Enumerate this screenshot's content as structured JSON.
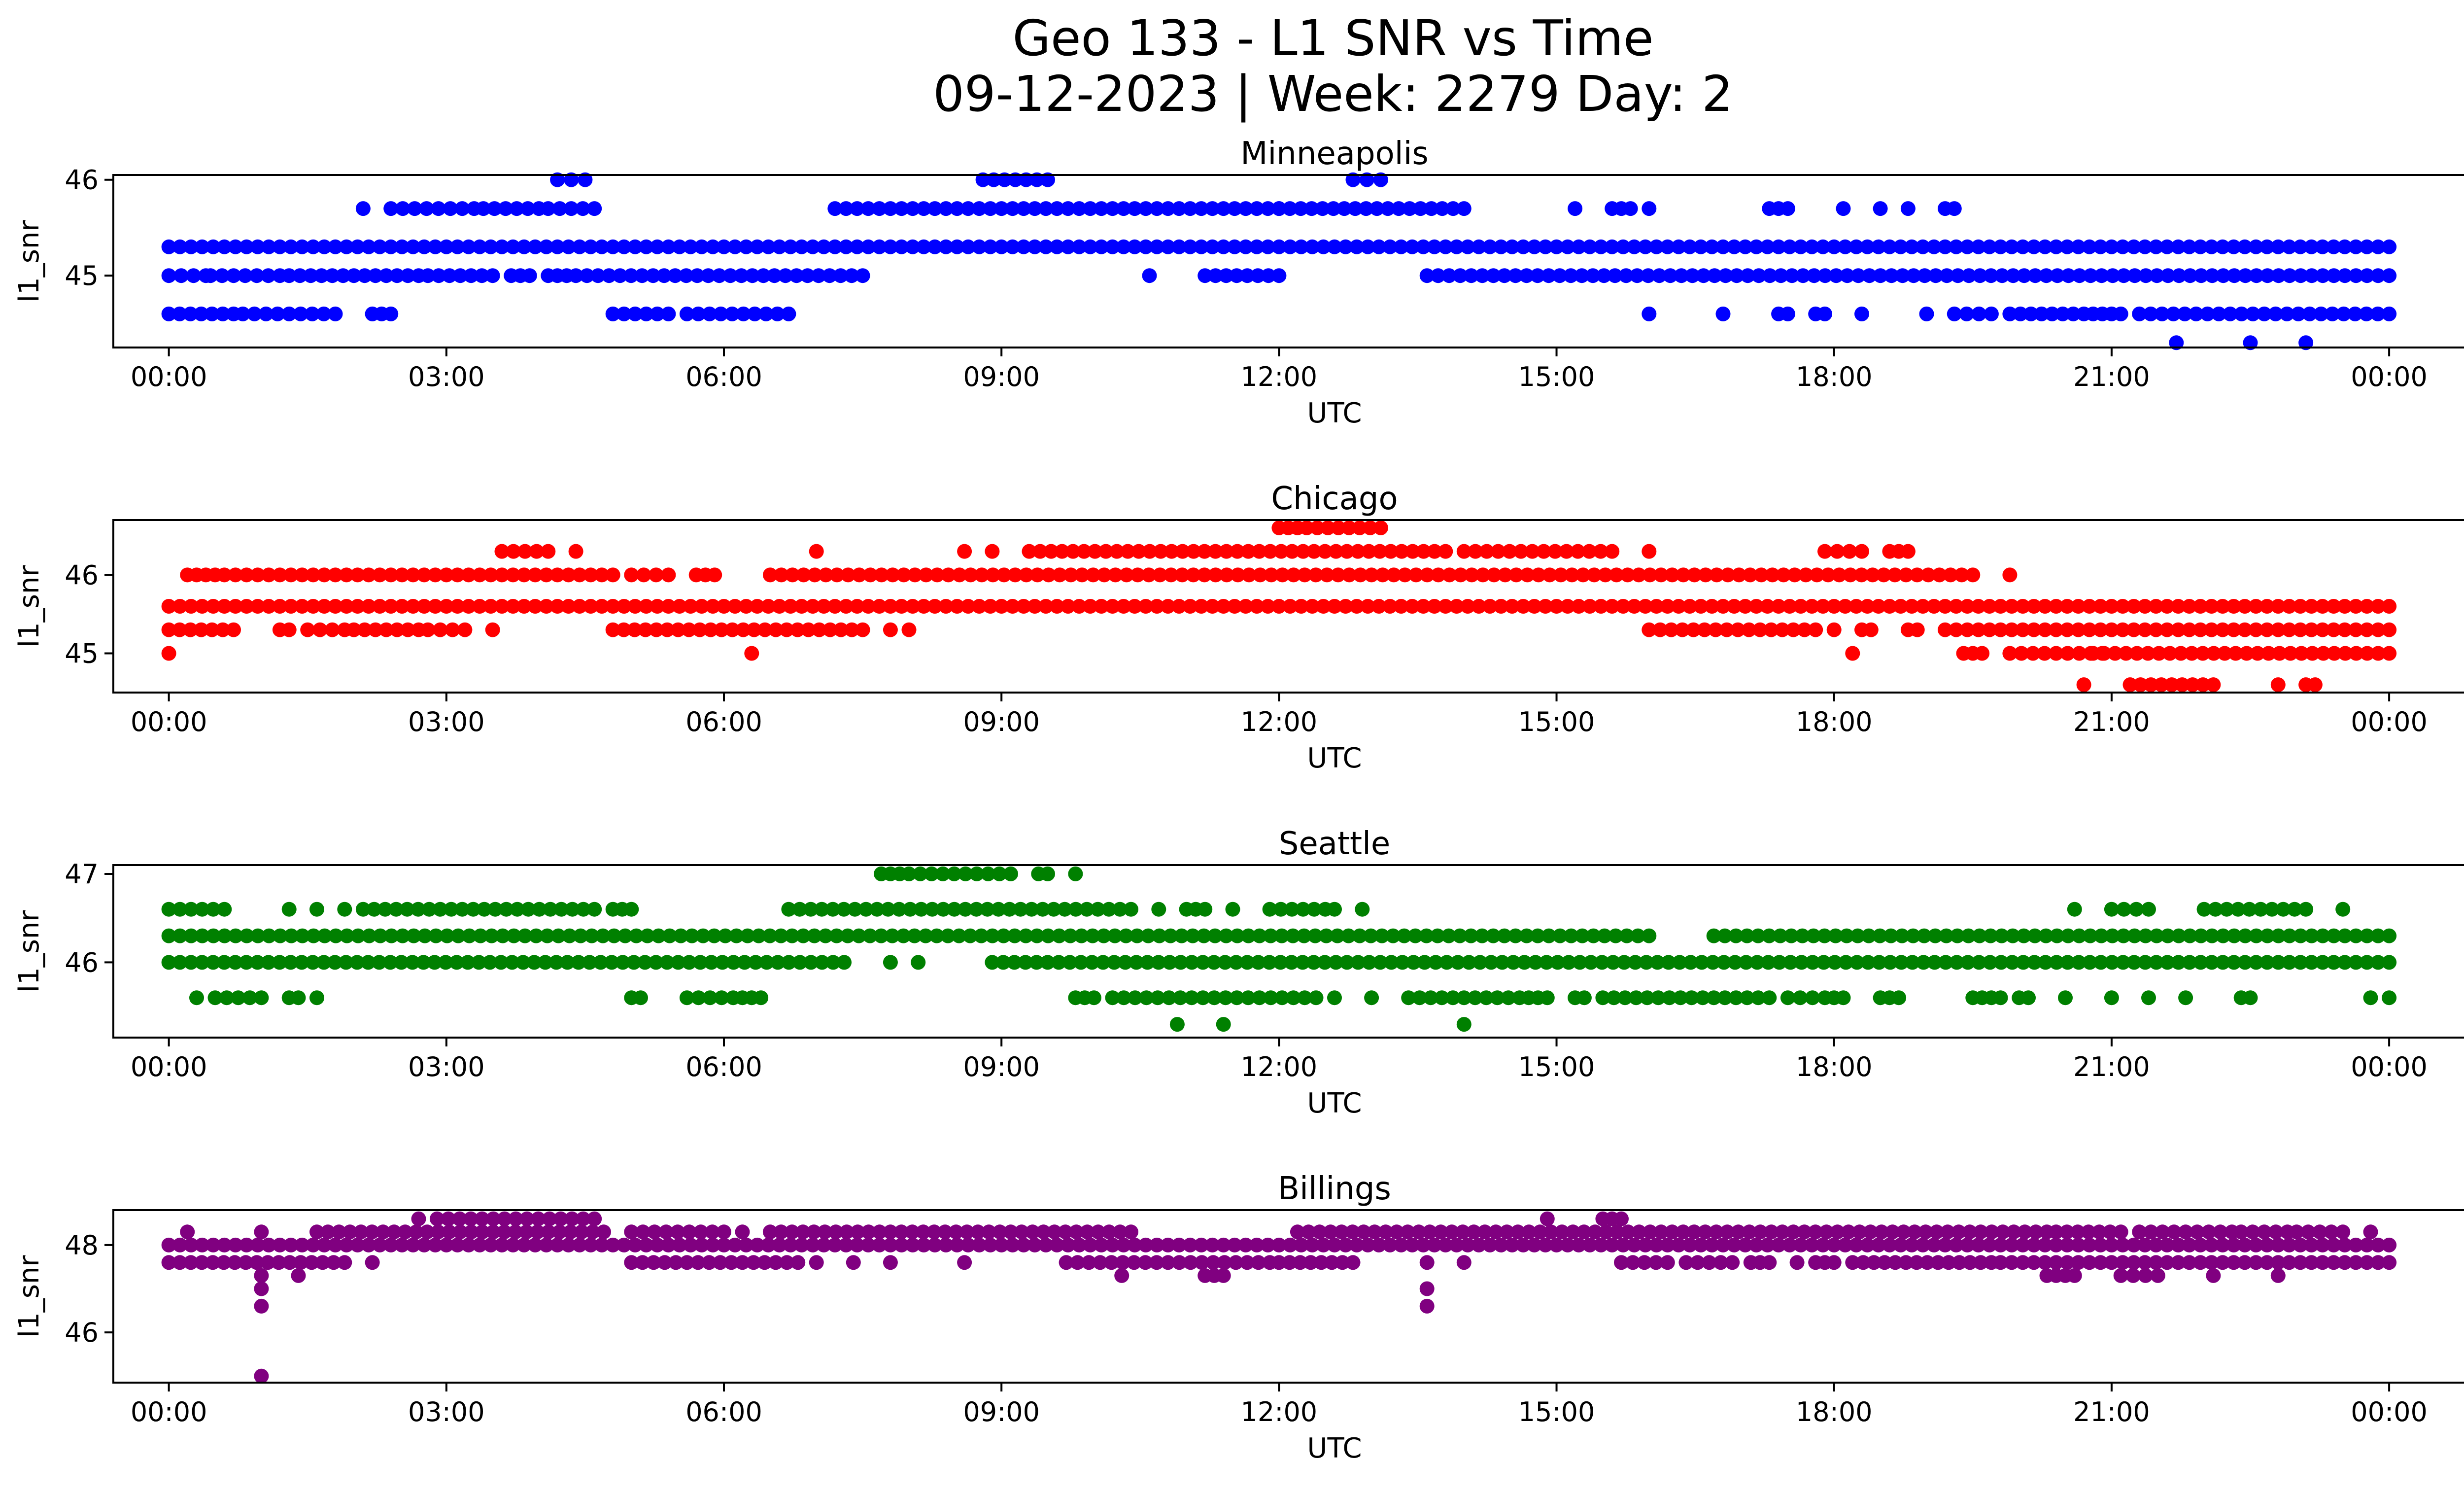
{
  "figure": {
    "title_line1": "Geo 133 - L1 SNR vs Time",
    "title_line2": "09-12-2023 | Week: 2279 Day: 2"
  },
  "chart_data": [
    {
      "type": "scatter",
      "title": "Minneapolis",
      "xlabel": "UTC",
      "ylabel": "l1_snr",
      "color": "#0000ff",
      "xlim_hours": [
        -0.6,
        25.8
      ],
      "ylim": [
        44.25,
        46.05
      ],
      "x_ticks": [
        "00:00",
        "03:00",
        "06:00",
        "09:00",
        "12:00",
        "15:00",
        "18:00",
        "21:00",
        "00:00"
      ],
      "y_ticks": [
        45,
        46
      ],
      "grid": false,
      "levels": [
        {
          "y": 45.3,
          "segments": [
            [
              0.0,
              24.0
            ]
          ]
        },
        {
          "y": 45.0,
          "segments": [
            [
              0.0,
              0.4
            ],
            [
              0.45,
              1.2
            ],
            [
              1.3,
              2.7
            ],
            [
              2.8,
              3.5
            ],
            [
              3.7,
              3.9
            ],
            [
              4.1,
              4.3
            ],
            [
              4.4,
              7.5
            ],
            [
              10.6,
              10.6
            ],
            [
              11.2,
              12.0
            ],
            [
              13.6,
              24.0
            ]
          ]
        },
        {
          "y": 44.6,
          "segments": [
            [
              0.0,
              0.7
            ],
            [
              0.8,
              1.8
            ],
            [
              2.2,
              2.4
            ],
            [
              4.8,
              5.4
            ],
            [
              5.6,
              6.7
            ],
            [
              16.0,
              16.0
            ],
            [
              16.8,
              16.8
            ],
            [
              17.4,
              17.5
            ],
            [
              17.8,
              17.9
            ],
            [
              18.3,
              18.3
            ],
            [
              19.0,
              19.0
            ],
            [
              19.3,
              19.7
            ],
            [
              19.9,
              20.7
            ],
            [
              20.8,
              21.1
            ],
            [
              21.3,
              24.0
            ]
          ]
        },
        {
          "y": 45.7,
          "segments": [
            [
              2.1,
              2.1
            ],
            [
              2.4,
              3.3
            ],
            [
              3.4,
              4.0
            ],
            [
              4.1,
              4.6
            ],
            [
              7.2,
              12.0
            ],
            [
              12.0,
              14.0
            ],
            [
              15.2,
              15.2
            ],
            [
              15.6,
              15.8
            ],
            [
              16.0,
              16.0
            ],
            [
              17.3,
              17.5
            ],
            [
              18.1,
              18.1
            ],
            [
              18.5,
              18.5
            ],
            [
              18.8,
              18.8
            ],
            [
              19.2,
              19.3
            ]
          ]
        },
        {
          "y": 46.0,
          "segments": [
            [
              4.2,
              4.5
            ],
            [
              8.8,
              9.5
            ],
            [
              12.8,
              13.1
            ]
          ]
        },
        {
          "y": 44.3,
          "segments": [
            [
              21.7,
              21.7
            ],
            [
              22.5,
              22.5
            ],
            [
              23.1,
              23.1
            ]
          ]
        }
      ]
    },
    {
      "type": "scatter",
      "title": "Chicago",
      "xlabel": "UTC",
      "ylabel": "l1_snr",
      "color": "#ff0000",
      "xlim_hours": [
        -0.6,
        25.8
      ],
      "ylim": [
        44.5,
        46.7
      ],
      "x_ticks": [
        "00:00",
        "03:00",
        "06:00",
        "09:00",
        "12:00",
        "15:00",
        "18:00",
        "21:00",
        "00:00"
      ],
      "y_ticks": [
        45,
        46
      ],
      "grid": false,
      "levels": [
        {
          "y": 45.6,
          "segments": [
            [
              0.0,
              24.0
            ]
          ]
        },
        {
          "y": 46.0,
          "segments": [
            [
              0.2,
              0.5
            ],
            [
              0.6,
              4.8
            ],
            [
              5.0,
              5.4
            ],
            [
              5.7,
              5.9
            ],
            [
              6.5,
              19.5
            ],
            [
              19.9,
              19.9
            ]
          ]
        },
        {
          "y": 45.3,
          "segments": [
            [
              0.0,
              0.7
            ],
            [
              1.2,
              1.3
            ],
            [
              1.5,
              1.9
            ],
            [
              2.0,
              2.7
            ],
            [
              2.8,
              3.2
            ],
            [
              3.5,
              3.5
            ],
            [
              4.8,
              7.5
            ],
            [
              7.8,
              7.8
            ],
            [
              8.0,
              8.0
            ],
            [
              16.0,
              17.8
            ],
            [
              18.0,
              18.0
            ],
            [
              18.3,
              18.4
            ],
            [
              18.8,
              18.9
            ],
            [
              19.2,
              24.0
            ]
          ]
        },
        {
          "y": 46.3,
          "segments": [
            [
              3.6,
              4.1
            ],
            [
              4.4,
              4.4
            ],
            [
              7.0,
              7.0
            ],
            [
              8.6,
              8.6
            ],
            [
              8.9,
              8.9
            ],
            [
              9.3,
              13.8
            ],
            [
              14.0,
              15.6
            ],
            [
              16.0,
              16.0
            ],
            [
              17.9,
              18.3
            ],
            [
              18.6,
              18.8
            ]
          ]
        },
        {
          "y": 46.6,
          "segments": [
            [
              12.0,
              12.2
            ],
            [
              12.3,
              13.1
            ]
          ]
        },
        {
          "y": 45.0,
          "segments": [
            [
              0.0,
              0.0
            ],
            [
              6.3,
              6.3
            ],
            [
              18.2,
              18.2
            ],
            [
              19.4,
              19.6
            ],
            [
              19.9,
              20.9
            ],
            [
              20.8,
              24.0
            ]
          ]
        },
        {
          "y": 44.6,
          "segments": [
            [
              20.7,
              20.7
            ],
            [
              21.2,
              22.1
            ],
            [
              22.8,
              22.8
            ],
            [
              23.1,
              23.2
            ]
          ]
        }
      ]
    },
    {
      "type": "scatter",
      "title": "Seattle",
      "xlabel": "UTC",
      "ylabel": "l1_snr",
      "color": "#008000",
      "xlim_hours": [
        -0.6,
        25.8
      ],
      "ylim": [
        45.15,
        47.1
      ],
      "x_ticks": [
        "00:00",
        "03:00",
        "06:00",
        "09:00",
        "12:00",
        "15:00",
        "18:00",
        "21:00",
        "00:00"
      ],
      "y_ticks": [
        46,
        47
      ],
      "grid": false,
      "levels": [
        {
          "y": 46.3,
          "segments": [
            [
              0.0,
              16.0
            ],
            [
              16.7,
              24.0
            ]
          ]
        },
        {
          "y": 46.0,
          "segments": [
            [
              0.0,
              7.3
            ],
            [
              7.8,
              7.8
            ],
            [
              8.1,
              8.1
            ],
            [
              8.9,
              24.0
            ]
          ]
        },
        {
          "y": 46.6,
          "segments": [
            [
              0.0,
              0.6
            ],
            [
              1.3,
              1.3
            ],
            [
              1.6,
              1.6
            ],
            [
              1.9,
              1.9
            ],
            [
              2.1,
              4.6
            ],
            [
              4.8,
              4.8
            ],
            [
              4.9,
              5.0
            ],
            [
              6.7,
              10.4
            ],
            [
              10.7,
              10.7
            ],
            [
              11.0,
              11.2
            ],
            [
              11.5,
              11.5
            ],
            [
              11.9,
              12.5
            ],
            [
              12.6,
              12.6
            ],
            [
              12.9,
              12.9
            ],
            [
              20.6,
              20.6
            ],
            [
              21.0,
              21.4
            ],
            [
              22.0,
              23.1
            ],
            [
              23.5,
              23.5
            ]
          ]
        },
        {
          "y": 45.6,
          "segments": [
            [
              0.3,
              0.3
            ],
            [
              0.5,
              1.0
            ],
            [
              1.3,
              1.4
            ],
            [
              1.6,
              1.6
            ],
            [
              5.0,
              5.1
            ],
            [
              5.6,
              6.1
            ],
            [
              6.2,
              6.3
            ],
            [
              6.4,
              6.4
            ],
            [
              9.8,
              10.0
            ],
            [
              10.2,
              12.4
            ],
            [
              12.6,
              12.6
            ],
            [
              13.0,
              13.0
            ],
            [
              13.4,
              14.6
            ],
            [
              14.7,
              14.9
            ],
            [
              15.2,
              15.3
            ],
            [
              15.5,
              17.3
            ],
            [
              17.5,
              17.9
            ],
            [
              18.0,
              18.1
            ],
            [
              18.5,
              18.7
            ],
            [
              19.5,
              19.8
            ],
            [
              20.0,
              20.1
            ],
            [
              20.5,
              20.5
            ],
            [
              21.0,
              21.0
            ],
            [
              21.4,
              21.4
            ],
            [
              21.8,
              21.8
            ],
            [
              22.4,
              22.5
            ],
            [
              23.8,
              23.8
            ],
            [
              24.0,
              24.0
            ]
          ]
        },
        {
          "y": 47.0,
          "segments": [
            [
              7.7,
              7.9
            ],
            [
              8.0,
              9.1
            ],
            [
              9.4,
              9.5
            ],
            [
              9.8,
              9.8
            ]
          ]
        },
        {
          "y": 45.3,
          "segments": [
            [
              10.9,
              10.9
            ],
            [
              11.4,
              11.4
            ],
            [
              14.0,
              14.0
            ]
          ]
        }
      ]
    },
    {
      "type": "scatter",
      "title": "Billings",
      "xlabel": "UTC",
      "ylabel": "l1_snr",
      "color": "#800080",
      "xlim_hours": [
        -0.6,
        25.8
      ],
      "ylim": [
        44.85,
        48.8
      ],
      "x_ticks": [
        "00:00",
        "03:00",
        "06:00",
        "09:00",
        "12:00",
        "15:00",
        "18:00",
        "21:00",
        "00:00"
      ],
      "y_ticks": [
        46,
        48
      ],
      "grid": false,
      "levels": [
        {
          "y": 48.0,
          "segments": [
            [
              0.0,
              24.0
            ]
          ]
        },
        {
          "y": 47.6,
          "segments": [
            [
              0.0,
              1.9
            ],
            [
              2.2,
              2.2
            ],
            [
              5.0,
              6.8
            ],
            [
              7.0,
              7.0
            ],
            [
              7.4,
              7.4
            ],
            [
              7.8,
              7.8
            ],
            [
              8.6,
              8.6
            ],
            [
              9.7,
              11.9
            ],
            [
              12.0,
              12.8
            ],
            [
              13.6,
              13.6
            ],
            [
              14.0,
              14.0
            ],
            [
              15.7,
              16.2
            ],
            [
              16.4,
              16.9
            ],
            [
              17.1,
              17.3
            ],
            [
              17.6,
              17.6
            ],
            [
              17.8,
              18.0
            ],
            [
              18.2,
              19.7
            ],
            [
              19.8,
              24.0
            ]
          ]
        },
        {
          "y": 48.3,
          "segments": [
            [
              0.2,
              0.2
            ],
            [
              1.0,
              1.0
            ],
            [
              1.6,
              4.7
            ],
            [
              5.0,
              6.0
            ],
            [
              6.2,
              6.2
            ],
            [
              6.5,
              10.4
            ],
            [
              12.2,
              20.3
            ],
            [
              20.4,
              21.1
            ],
            [
              21.3,
              22.3
            ],
            [
              22.4,
              22.9
            ],
            [
              23.0,
              23.5
            ],
            [
              23.8,
              23.8
            ]
          ]
        },
        {
          "y": 48.6,
          "segments": [
            [
              2.7,
              2.7
            ],
            [
              2.9,
              4.6
            ],
            [
              14.9,
              14.9
            ],
            [
              15.5,
              15.7
            ]
          ]
        },
        {
          "y": 47.3,
          "segments": [
            [
              1.0,
              1.0
            ],
            [
              1.4,
              1.4
            ],
            [
              10.3,
              10.3
            ],
            [
              11.2,
              11.4
            ],
            [
              20.3,
              20.6
            ],
            [
              21.1,
              21.5
            ],
            [
              22.1,
              22.1
            ],
            [
              22.8,
              22.8
            ]
          ]
        },
        {
          "y": 47.0,
          "segments": [
            [
              1.0,
              1.0
            ],
            [
              13.6,
              13.6
            ]
          ]
        },
        {
          "y": 46.6,
          "segments": [
            [
              1.0,
              1.0
            ],
            [
              13.6,
              13.6
            ]
          ]
        },
        {
          "y": 45.0,
          "segments": [
            [
              1.0,
              1.0
            ]
          ]
        }
      ]
    }
  ]
}
